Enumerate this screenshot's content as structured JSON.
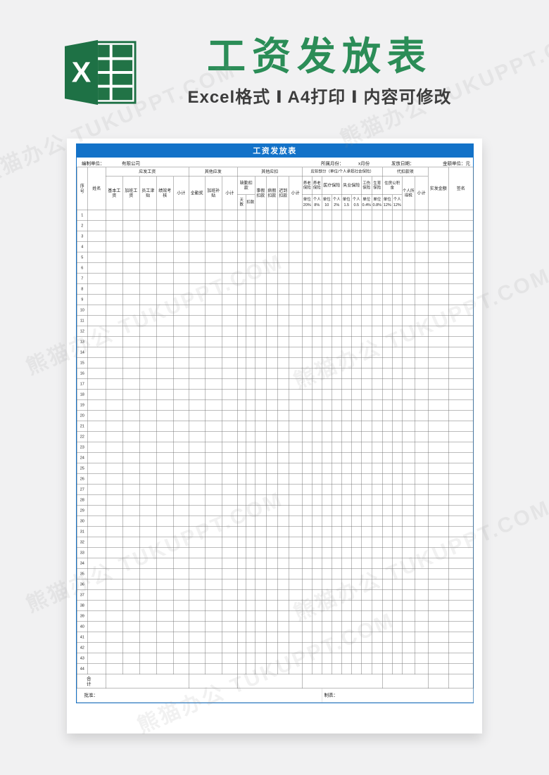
{
  "banner": {
    "excel_letter": "X",
    "title": "工资发放表",
    "subtitle": "Excel格式 Ⅰ A4打印 Ⅰ 内容可修改"
  },
  "watermark_text": "熊猫办公 TUKUPPT.COM",
  "colors": {
    "accent_blue": "#1372c8",
    "excel_green": "#217346",
    "title_green": "#2b8d57"
  },
  "sheet": {
    "title": "工资发放表",
    "info": {
      "unit_label": "编制单位：",
      "unit_value": "有限公司",
      "month_label": "所属月份：",
      "month_value": "x月份",
      "date_label": "发放日期：",
      "amount_label": "金额单位：元"
    },
    "header": {
      "no": "序号",
      "name": "姓名",
      "payable_label": "应发工资",
      "payable_cols": [
        "基本工资",
        "加班工资",
        "员工津贴",
        "绩效考核",
        "小计"
      ],
      "other_pay_label": "其他应发",
      "other_pay_cols": [
        "全勤奖",
        "加班补贴",
        "小计"
      ],
      "other_deduct_label": "其他应扣",
      "absence_label": "缺勤扣款",
      "absence_days": "天数",
      "absence_amount": "扣款",
      "other_deduct_cols": [
        "事假扣款",
        "病假扣款",
        "迟到扣款",
        "小计"
      ],
      "social_label": "应扣部分（单位/个人承担社会保险）",
      "social_top": [
        "养老保险",
        "养老保险",
        "医疗保险",
        "失业保险",
        "工伤保险",
        "生育保险"
      ],
      "rates": [
        [
          "单位",
          "20%"
        ],
        [
          "个人",
          "8%"
        ],
        [
          "单位",
          "10"
        ],
        [
          "个人",
          "2%"
        ],
        [
          "单位",
          "1.5"
        ],
        [
          "个人",
          "0.5"
        ],
        [
          "单位",
          "0.4%"
        ],
        [
          "单位",
          "0.8%"
        ],
        [
          "单位",
          "12%"
        ],
        [
          "个人",
          "12%"
        ]
      ],
      "withhold_label": "代扣款项",
      "housing_label": "住房公积金",
      "tax_label": "个人所得税",
      "subtotal_label": "小计",
      "net_label": "实发金额",
      "sign_label": "签名"
    },
    "row_count": 44,
    "column_count": 30,
    "total_label": "合　计",
    "footer": {
      "approve": "批准：",
      "tabulate": "制表："
    }
  }
}
